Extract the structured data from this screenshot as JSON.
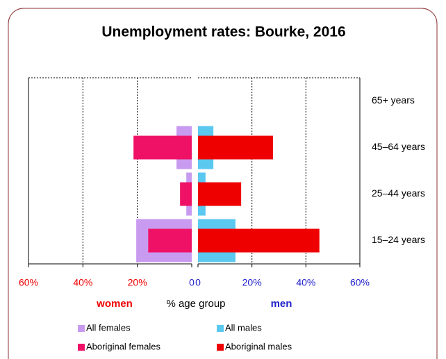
{
  "chart_data": {
    "type": "pyramid",
    "title": "Unemployment rates: Bourke, 2016",
    "categories": [
      "65+ years",
      "45–64 years",
      "25–44 years",
      "15–24 years"
    ],
    "series": [
      {
        "name": "All females",
        "side": "left",
        "width": "wide",
        "color": "#c89bf0",
        "values": [
          null,
          5.6,
          2,
          20.4
        ]
      },
      {
        "name": "All males",
        "side": "right",
        "width": "wide",
        "color": "#5bc8f0",
        "values": [
          null,
          5.7,
          2.8,
          13.9
        ]
      },
      {
        "name": "Aboriginal females",
        "side": "left",
        "width": "narrow",
        "color": "#ee1166",
        "values": [
          null,
          21.4,
          4.3,
          16
        ]
      },
      {
        "name": "Aboriginal males",
        "side": "right",
        "width": "narrow",
        "color": "#ee0000",
        "values": [
          null,
          27.8,
          16,
          45
        ]
      }
    ],
    "xlim": [
      0,
      60
    ],
    "left_xticks": [
      {
        "value": 60,
        "label": "60%"
      },
      {
        "value": 40,
        "label": "40%"
      },
      {
        "value": 20,
        "label": "20%"
      },
      0
    ],
    "right_xticks": [
      0,
      {
        "value": 20,
        "label": "20%"
      },
      {
        "value": 40,
        "label": "40%"
      },
      {
        "value": 60,
        "label": "60%"
      }
    ],
    "left_tick_color": "#ee0000",
    "right_tick_color": "#2222cc",
    "left_label": "women",
    "xlabel": "% age group",
    "right_label": "men",
    "grid": true
  }
}
